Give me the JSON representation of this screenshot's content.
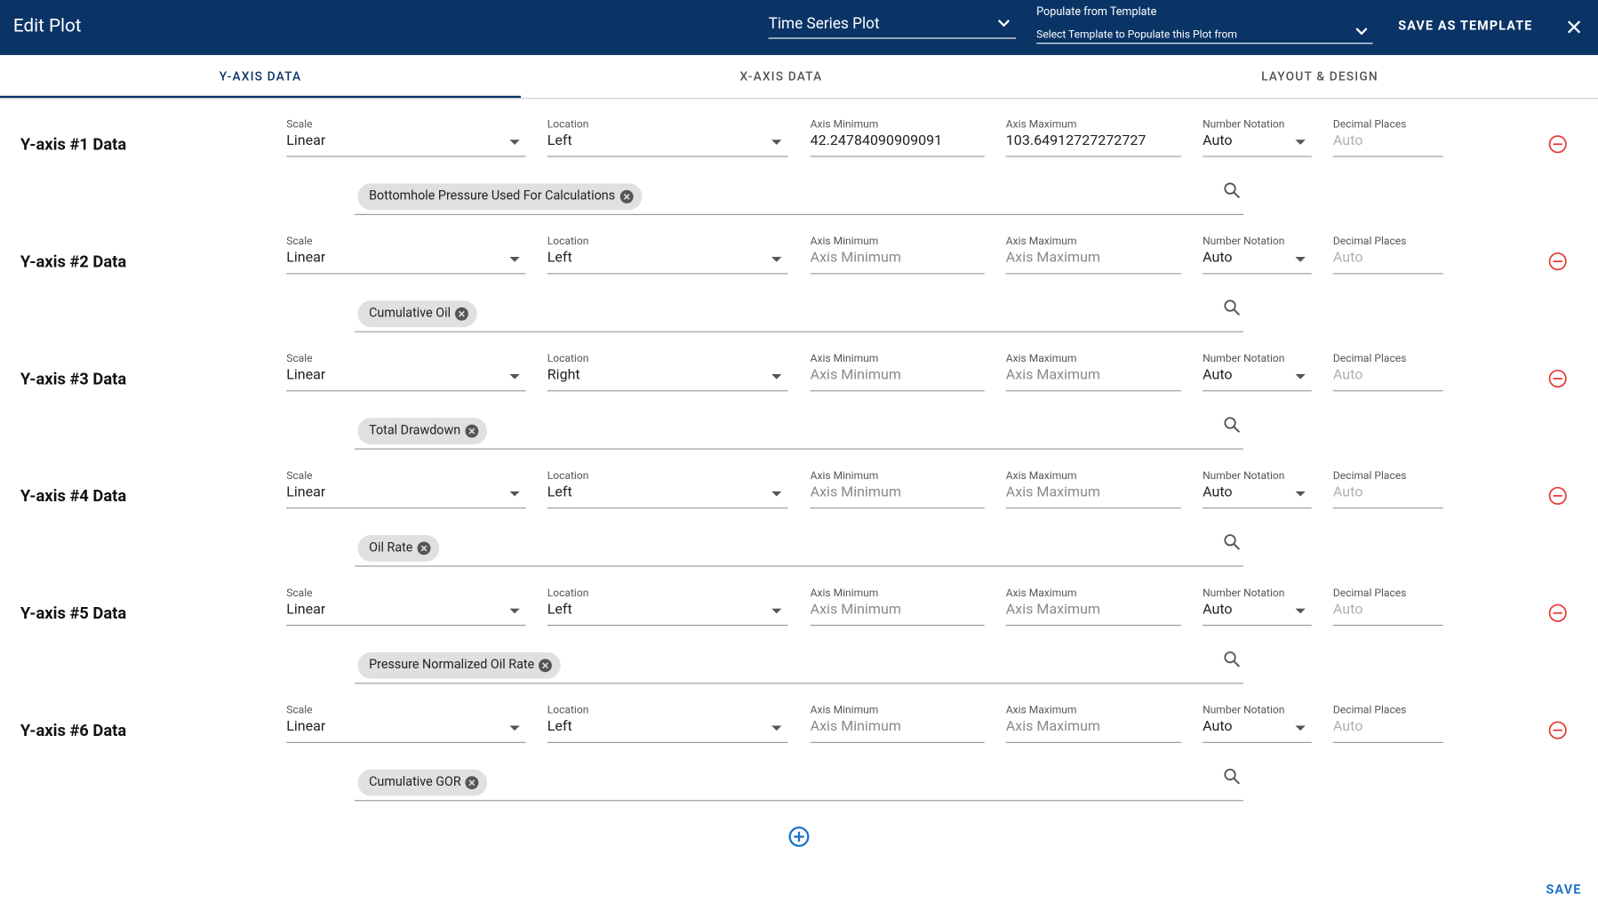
{
  "header": {
    "title": "Edit Plot",
    "plot_type": "Time Series Plot",
    "template_label": "Populate from Template",
    "template_placeholder": "Select Template to Populate this Plot from",
    "save_template": "SAVE AS TEMPLATE"
  },
  "tabs": [
    "Y-AXIS DATA",
    "X-AXIS DATA",
    "LAYOUT & DESIGN"
  ],
  "field_labels": {
    "scale": "Scale",
    "location": "Location",
    "axis_min": "Axis Minimum",
    "axis_max": "Axis Maximum",
    "notation": "Number Notation",
    "decimals": "Decimal Places"
  },
  "rows": [
    {
      "label": "Y-axis #1 Data",
      "scale": "Linear",
      "location": "Left",
      "axis_min": "42.24784090909091",
      "axis_max": "103.64912727272727",
      "notation": "Auto",
      "decimals": "Auto",
      "series": "Bottomhole Pressure Used For Calculations"
    },
    {
      "label": "Y-axis #2 Data",
      "scale": "Linear",
      "location": "Left",
      "axis_min": null,
      "axis_max": null,
      "notation": "Auto",
      "decimals": "Auto",
      "series": "Cumulative Oil"
    },
    {
      "label": "Y-axis #3 Data",
      "scale": "Linear",
      "location": "Right",
      "axis_min": null,
      "axis_max": null,
      "notation": "Auto",
      "decimals": "Auto",
      "series": "Total Drawdown"
    },
    {
      "label": "Y-axis #4 Data",
      "scale": "Linear",
      "location": "Left",
      "axis_min": null,
      "axis_max": null,
      "notation": "Auto",
      "decimals": "Auto",
      "series": "Oil Rate"
    },
    {
      "label": "Y-axis #5 Data",
      "scale": "Linear",
      "location": "Left",
      "axis_min": null,
      "axis_max": null,
      "notation": "Auto",
      "decimals": "Auto",
      "series": "Pressure Normalized Oil Rate"
    },
    {
      "label": "Y-axis #6 Data",
      "scale": "Linear",
      "location": "Left",
      "axis_min": null,
      "axis_max": null,
      "notation": "Auto",
      "decimals": "Auto",
      "series": "Cumulative GOR"
    }
  ],
  "save": "SAVE"
}
